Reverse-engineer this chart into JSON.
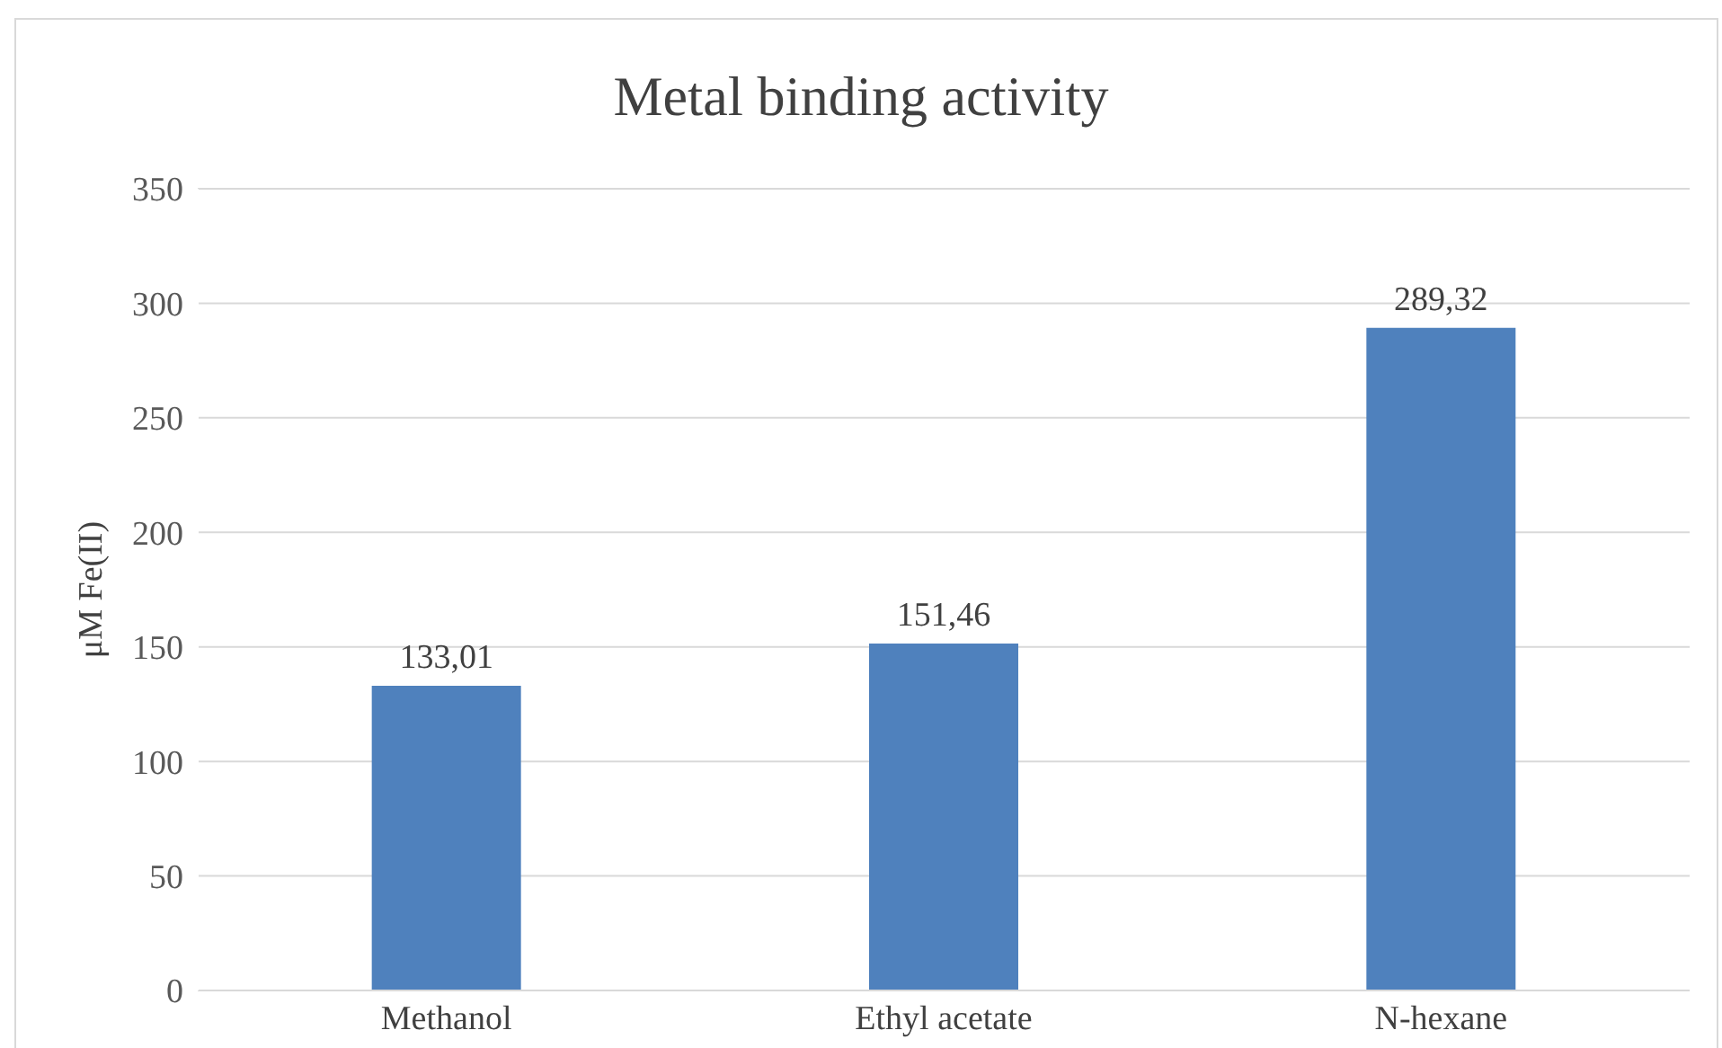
{
  "chart_data": {
    "type": "bar",
    "title": "Metal binding activity",
    "ylabel": "μM  Fe(II)",
    "categories": [
      "Methanol",
      "Ethyl acetate",
      "N-hexane"
    ],
    "values": [
      133.01,
      151.46,
      289.32
    ],
    "value_labels": [
      "133,01",
      "151,46",
      "289,32"
    ],
    "color": "#4f81bd",
    "ylim": [
      0,
      350
    ],
    "yticks": [
      0,
      50,
      100,
      150,
      200,
      250,
      300,
      350
    ],
    "grid": "y"
  }
}
